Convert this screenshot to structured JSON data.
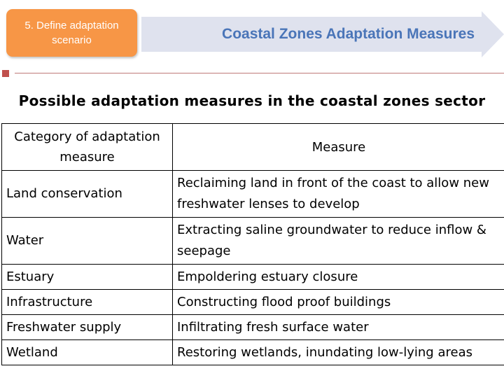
{
  "step": {
    "label": "5. Define adaptation\nscenario"
  },
  "banner": {
    "title": "Coastal Zones Adaptation Measures"
  },
  "slide": {
    "title": "Possible adaptation measures in the coastal zones sector"
  },
  "table": {
    "headers": [
      "Category of adaptation measure",
      "Measure"
    ],
    "rows": [
      {
        "category": "Land conservation",
        "measure": "Reclaiming land in front of the coast to allow new freshwater lenses to develop"
      },
      {
        "category": "Water",
        "measure": "Extracting saline groundwater to reduce inflow & seepage"
      },
      {
        "category": "Estuary",
        "measure": "Empoldering estuary closure"
      },
      {
        "category": "Infrastructure",
        "measure": "Constructing flood proof buildings"
      },
      {
        "category": "Freshwater supply",
        "measure": "Infiltrating fresh surface water"
      },
      {
        "category": "Wetland",
        "measure": "Restoring wetlands, inundating low-lying areas"
      }
    ]
  },
  "colors": {
    "step_box": "#f79646",
    "banner_arrow": "#dfe2ee",
    "banner_text": "#4a75b8",
    "accent": "#c0504d"
  }
}
